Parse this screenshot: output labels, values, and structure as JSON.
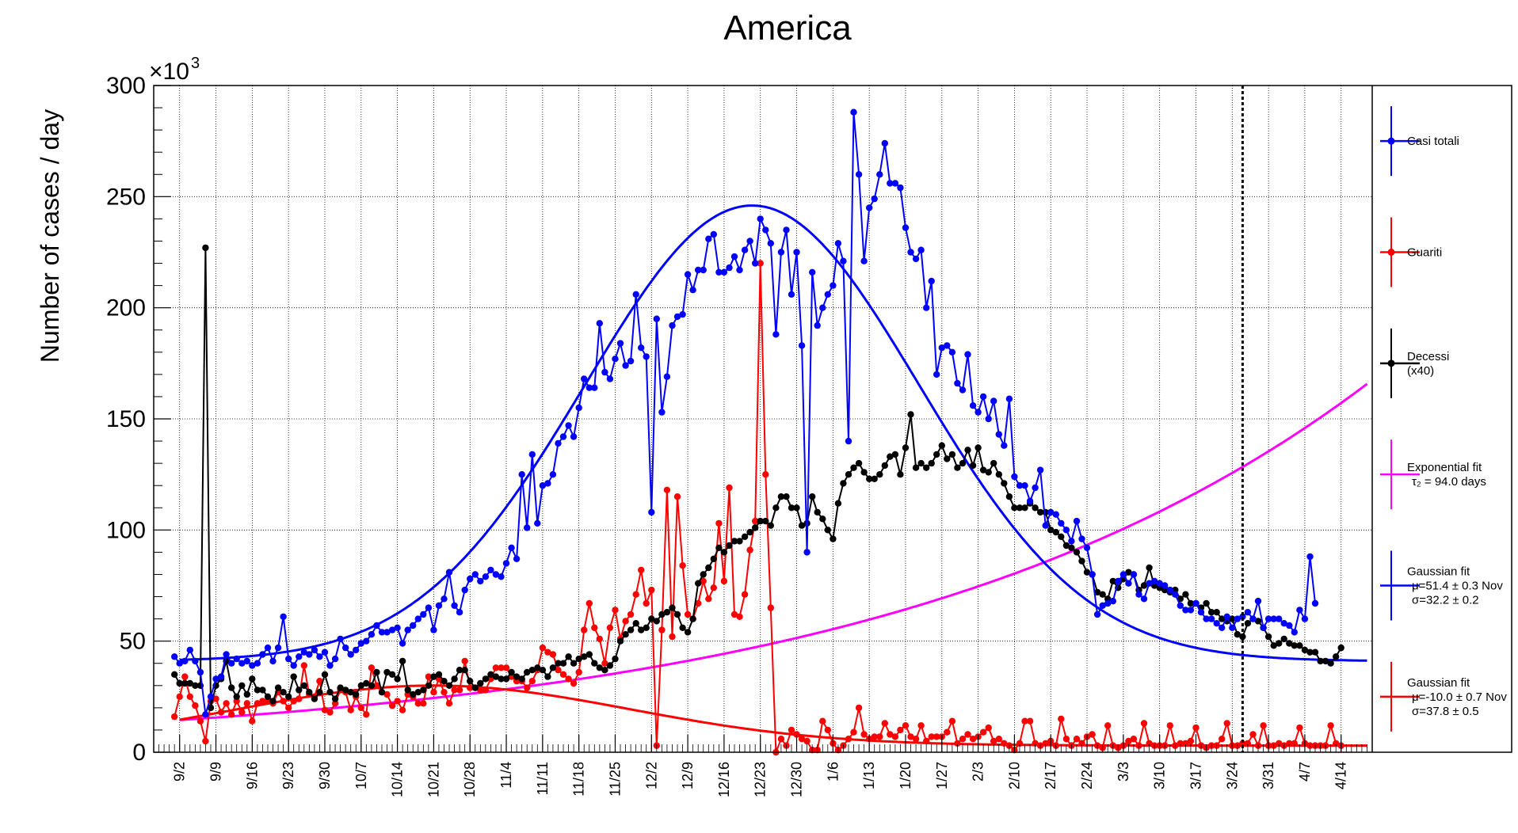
{
  "chart_data": {
    "type": "line",
    "title": "America",
    "ylabel": "Number of cases / day",
    "y_multiplier_label": "×10",
    "y_multiplier_exp": "3",
    "ylim": [
      0,
      300
    ],
    "y_ticks": [
      "0",
      "50",
      "100",
      "150",
      "200",
      "250",
      "300"
    ],
    "x_range_days": [
      240,
      475
    ],
    "x_ticks": [
      {
        "label": "9/2",
        "day": 245
      },
      {
        "label": "9/9",
        "day": 252
      },
      {
        "label": "9/16",
        "day": 259
      },
      {
        "label": "9/23",
        "day": 266
      },
      {
        "label": "9/30",
        "day": 273
      },
      {
        "label": "10/7",
        "day": 280
      },
      {
        "label": "10/14",
        "day": 287
      },
      {
        "label": "10/21",
        "day": 294
      },
      {
        "label": "10/28",
        "day": 301
      },
      {
        "label": "11/4",
        "day": 308
      },
      {
        "label": "11/11",
        "day": 315
      },
      {
        "label": "11/18",
        "day": 322
      },
      {
        "label": "11/25",
        "day": 329
      },
      {
        "label": "12/2",
        "day": 336
      },
      {
        "label": "12/9",
        "day": 343
      },
      {
        "label": "12/16",
        "day": 350
      },
      {
        "label": "12/23",
        "day": 357
      },
      {
        "label": "12/30",
        "day": 364
      },
      {
        "label": "1/6",
        "day": 371
      },
      {
        "label": "1/13",
        "day": 378
      },
      {
        "label": "1/20",
        "day": 385
      },
      {
        "label": "1/27",
        "day": 392
      },
      {
        "label": "2/3",
        "day": 399
      },
      {
        "label": "2/10",
        "day": 406
      },
      {
        "label": "2/17",
        "day": 413
      },
      {
        "label": "2/24",
        "day": 420
      },
      {
        "label": "3/3",
        "day": 427
      },
      {
        "label": "3/10",
        "day": 434
      },
      {
        "label": "3/17",
        "day": 441
      },
      {
        "label": "3/24",
        "day": 448
      },
      {
        "label": "3/31",
        "day": 455
      },
      {
        "label": "4/7",
        "day": 462
      },
      {
        "label": "4/14",
        "day": 469
      }
    ],
    "today_marker_day": 450,
    "grid": true,
    "legend_position": "right",
    "colors": {
      "casi": "#0000ff",
      "guariti": "#ff0000",
      "decessi": "#000000",
      "exp": "#ff00ff",
      "gauss_blue": "#0000ff",
      "gauss_red": "#ff0000"
    },
    "series": [
      {
        "name": "Casi totali",
        "key": "casi",
        "start_day": 244,
        "values": [
          43,
          40,
          41,
          46,
          41,
          36,
          17,
          25,
          33,
          34,
          44,
          40,
          42,
          40,
          41,
          39,
          40,
          44,
          47,
          41,
          47,
          61,
          42,
          39,
          43,
          45,
          44,
          46,
          43,
          45,
          39,
          42,
          51,
          47,
          44,
          46,
          49,
          50,
          53,
          57,
          54,
          54,
          55,
          56,
          49,
          55,
          57,
          60,
          62,
          65,
          55,
          66,
          69,
          81,
          66,
          63,
          73,
          78,
          80,
          77,
          79,
          82,
          80,
          79,
          85,
          92,
          87,
          125,
          101,
          134,
          103,
          120,
          121,
          125,
          139,
          142,
          147,
          142,
          155,
          168,
          164,
          164,
          193,
          171,
          168,
          177,
          184,
          174,
          176,
          206,
          182,
          178,
          108,
          195,
          153,
          169,
          192,
          196,
          197,
          215,
          208,
          217,
          217,
          231,
          233,
          216,
          216,
          218,
          223,
          217,
          226,
          230,
          220,
          240,
          235,
          229,
          188,
          225,
          235,
          206,
          225,
          183,
          90,
          216,
          192,
          200,
          206,
          210,
          229,
          221,
          140,
          288,
          260,
          221,
          245,
          249,
          260,
          274,
          256,
          256,
          254,
          236,
          225,
          222,
          226,
          200,
          212,
          170,
          182,
          183,
          180,
          166,
          163,
          179,
          156,
          153,
          160,
          150,
          158,
          143,
          138,
          159,
          124,
          120,
          120,
          113,
          119,
          127,
          102,
          108,
          107,
          103,
          100,
          95,
          104,
          96,
          92,
          80,
          62,
          66,
          67,
          68,
          77,
          80,
          76,
          80,
          71,
          69,
          76,
          77,
          76,
          75,
          73,
          71,
          66,
          64,
          64,
          67,
          63,
          60,
          60,
          58,
          56,
          61,
          56,
          60,
          61,
          63,
          60,
          68,
          56,
          60,
          60,
          60,
          58,
          57,
          54,
          64,
          60,
          88,
          67
        ]
      },
      {
        "name": "Guariti",
        "key": "guariti",
        "start_day": 244,
        "values": [
          16,
          25,
          34,
          25,
          21,
          14,
          5,
          23,
          24,
          18,
          22,
          17,
          23,
          18,
          22,
          14,
          22,
          23,
          23,
          22,
          27,
          23,
          20,
          23,
          24,
          39,
          26,
          25,
          32,
          19,
          18,
          22,
          28,
          27,
          19,
          25,
          20,
          17,
          38,
          30,
          27,
          26,
          21,
          23,
          19,
          26,
          25,
          22,
          22,
          34,
          27,
          33,
          27,
          22,
          28,
          28,
          41,
          29,
          29,
          28,
          28,
          33,
          38,
          38,
          38,
          34,
          32,
          32,
          29,
          32,
          37,
          47,
          45,
          44,
          37,
          35,
          33,
          31,
          36,
          55,
          67,
          56,
          51,
          40,
          56,
          64,
          51,
          59,
          62,
          71,
          82,
          67,
          73,
          3,
          55,
          118,
          52,
          115,
          84,
          62,
          60,
          67,
          77,
          69,
          74,
          103,
          77,
          119,
          62,
          61,
          71,
          91,
          104,
          220,
          125,
          65,
          0,
          6,
          3,
          10,
          8,
          6,
          5,
          1,
          1,
          14,
          10,
          4,
          1,
          3,
          6,
          9,
          20,
          8,
          6,
          7,
          7,
          13,
          8,
          7,
          10,
          12,
          7,
          6,
          12,
          5,
          7,
          7,
          7,
          9,
          14,
          4,
          6,
          8,
          6,
          7,
          9,
          11,
          5,
          6,
          4,
          3,
          1,
          4,
          14,
          14,
          4,
          3,
          4,
          5,
          3,
          15,
          6,
          3,
          6,
          4,
          7,
          8,
          3,
          2,
          12,
          3,
          2,
          3,
          5,
          6,
          3,
          13,
          4,
          3,
          3,
          3,
          12,
          3,
          4,
          4,
          5,
          11,
          3,
          2,
          3,
          3,
          6,
          13,
          3,
          3,
          4,
          4,
          8,
          3,
          12,
          3,
          3,
          4,
          3,
          4,
          4,
          11,
          4,
          3,
          3,
          3,
          3,
          12,
          4,
          3
        ]
      },
      {
        "name": "Decessi",
        "name2": "(x40)",
        "key": "decessi",
        "start_day": 244,
        "values": [
          35,
          31,
          31,
          31,
          30,
          30,
          227,
          20,
          30,
          33,
          41,
          29,
          25,
          30,
          26,
          33,
          28,
          28,
          25,
          23,
          29,
          27,
          25,
          34,
          28,
          30,
          27,
          24,
          27,
          35,
          27,
          24,
          29,
          28,
          27,
          26,
          30,
          31,
          30,
          36,
          27,
          36,
          35,
          33,
          41,
          28,
          26,
          27,
          28,
          30,
          34,
          35,
          32,
          30,
          33,
          37,
          37,
          32,
          29,
          31,
          33,
          35,
          34,
          33,
          33,
          36,
          34,
          33,
          36,
          37,
          38,
          37,
          34,
          38,
          40,
          40,
          43,
          40,
          42,
          43,
          44,
          40,
          38,
          37,
          39,
          42,
          50,
          53,
          55,
          58,
          55,
          56,
          60,
          59,
          62,
          63,
          65,
          62,
          56,
          54,
          60,
          76,
          80,
          83,
          87,
          92,
          90,
          93,
          95,
          95,
          97,
          99,
          101,
          104,
          104,
          102,
          110,
          115,
          115,
          110,
          110,
          102,
          103,
          115,
          108,
          105,
          100,
          96,
          112,
          121,
          125,
          128,
          130,
          126,
          123,
          123,
          125,
          129,
          133,
          134,
          125,
          137,
          152,
          128,
          130,
          128,
          130,
          134,
          138,
          132,
          134,
          128,
          130,
          136,
          129,
          137,
          127,
          126,
          130,
          125,
          121,
          115,
          110,
          110,
          110,
          112,
          110,
          108,
          108,
          100,
          99,
          97,
          93,
          92,
          90,
          86,
          81,
          80,
          72,
          71,
          69,
          77,
          74,
          78,
          81,
          80,
          73,
          75,
          83,
          75,
          74,
          73,
          72,
          73,
          69,
          71,
          67,
          67,
          65,
          67,
          63,
          63,
          60,
          59,
          60,
          53,
          52,
          58,
          60,
          59,
          56,
          52,
          48,
          49,
          51,
          49,
          48,
          48,
          46,
          45,
          45,
          41,
          41,
          40,
          43,
          47
        ]
      }
    ],
    "fits": [
      {
        "name": "Exponential fit",
        "label2": "τ₂ = 94.0 days",
        "key": "exp",
        "type": "exponential",
        "tau_days": 94.0,
        "start_day": 245,
        "end_day": 474,
        "y_at_start": 14.5
      },
      {
        "name": "Gaussian fit",
        "label2": "μ=51.4 ± 0.3 Nov",
        "label3": "σ=32.2 ± 0.2",
        "key": "gauss_blue",
        "type": "gaussian",
        "mu_day": 355.4,
        "sigma": 32.2,
        "amplitude": 205,
        "baseline": 41,
        "start_day": 245,
        "end_day": 474
      },
      {
        "name": "Gaussian fit",
        "label2": "μ=-10.0 ± 0.7 Nov",
        "label3": "σ=37.8 ± 0.5",
        "key": "gauss_red",
        "type": "gaussian",
        "mu_day": 294,
        "sigma": 37.8,
        "amplitude": 27,
        "baseline": 3,
        "start_day": 245,
        "end_day": 474
      }
    ]
  },
  "legend": [
    {
      "key": "casi",
      "line1": "Casi totali",
      "line2": "",
      "line3": ""
    },
    {
      "key": "guariti",
      "line1": "Guariti",
      "line2": "",
      "line3": ""
    },
    {
      "key": "decessi",
      "line1": "Decessi",
      "line2": "(x40)",
      "line3": ""
    },
    {
      "key": "exp",
      "line1": "Exponential fit",
      "line2": "τ₂ = 94.0 days",
      "line3": ""
    },
    {
      "key": "gauss_blue",
      "line1": "Gaussian fit",
      "line2": "μ=51.4 ± 0.3 Nov",
      "line3": "σ=32.2 ± 0.2"
    },
    {
      "key": "gauss_red",
      "line1": "Gaussian fit",
      "line2": "μ=-10.0 ± 0.7 Nov",
      "line3": "σ=37.8 ± 0.5"
    }
  ]
}
